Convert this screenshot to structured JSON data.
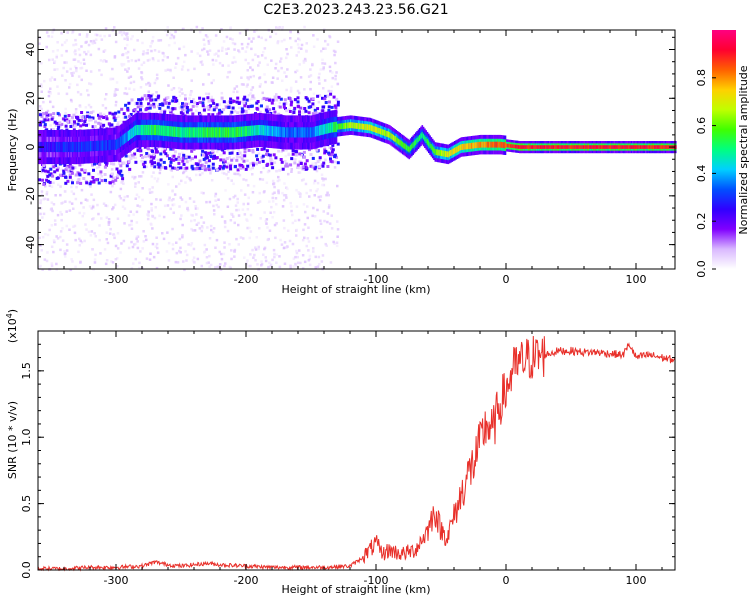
{
  "title": "C2E3.2023.243.23.56.G21",
  "chart_data": [
    {
      "type": "heatmap",
      "xlabel": "Height of straight line (km)",
      "ylabel": "Frequency (Hz)",
      "xlim": [
        -360,
        130
      ],
      "ylim": [
        -50,
        48
      ],
      "x_ticks": [
        -300,
        -200,
        -100,
        0,
        100
      ],
      "y_ticks": [
        -40,
        -20,
        0,
        20,
        40
      ],
      "colorbar": {
        "label": "Normalized spectral amplitude",
        "range": [
          0,
          1
        ],
        "ticks": [
          "0.0",
          "0.2",
          "0.4",
          "0.6",
          "0.8"
        ],
        "tick_values": [
          0,
          0.2,
          0.4,
          0.6,
          0.8
        ],
        "colormap": [
          "#ffffff",
          "#d9b8ff",
          "#8000ff",
          "#3000ff",
          "#0050ff",
          "#00d0ff",
          "#00ff80",
          "#40ff00",
          "#c0ff00",
          "#ffd000",
          "#ff6000",
          "#ff0030",
          "#ff0080"
        ]
      },
      "ridge": [
        {
          "x": -360,
          "f": 0,
          "a": 0.25
        },
        {
          "x": -330,
          "f": 0,
          "a": 0.3
        },
        {
          "x": -300,
          "f": 1,
          "a": 0.3
        },
        {
          "x": -285,
          "f": 7,
          "a": 0.45
        },
        {
          "x": -270,
          "f": 7,
          "a": 0.55
        },
        {
          "x": -250,
          "f": 6,
          "a": 0.5
        },
        {
          "x": -230,
          "f": 6,
          "a": 0.55
        },
        {
          "x": -210,
          "f": 6,
          "a": 0.55
        },
        {
          "x": -190,
          "f": 7,
          "a": 0.45
        },
        {
          "x": -170,
          "f": 6,
          "a": 0.35
        },
        {
          "x": -150,
          "f": 6,
          "a": 0.35
        },
        {
          "x": -135,
          "f": 8,
          "a": 0.5
        },
        {
          "x": -120,
          "f": 9,
          "a": 0.65
        },
        {
          "x": -105,
          "f": 8,
          "a": 0.7
        },
        {
          "x": -90,
          "f": 5,
          "a": 0.65
        },
        {
          "x": -75,
          "f": -1,
          "a": 0.55
        },
        {
          "x": -65,
          "f": 5,
          "a": 0.5
        },
        {
          "x": -55,
          "f": -2,
          "a": 0.6
        },
        {
          "x": -45,
          "f": -3,
          "a": 0.7
        },
        {
          "x": -35,
          "f": 0,
          "a": 0.75
        },
        {
          "x": -20,
          "f": 1,
          "a": 0.8
        },
        {
          "x": -5,
          "f": 1,
          "a": 0.85
        },
        {
          "x": 10,
          "f": 0,
          "a": 0.9
        },
        {
          "x": 50,
          "f": 0,
          "a": 0.9
        },
        {
          "x": 100,
          "f": 0,
          "a": 0.9
        },
        {
          "x": 130,
          "f": 0,
          "a": 0.9
        }
      ]
    },
    {
      "type": "line",
      "xlabel": "Height of straight line (km)",
      "ylabel": "SNR (10 * v/v)",
      "y_scale_label": "(x10",
      "y_scale_exponent": "4",
      "y_scale_close": ")",
      "xlim": [
        -360,
        130
      ],
      "ylim": [
        0,
        1.8
      ],
      "x_ticks": [
        -300,
        -200,
        -100,
        0,
        100
      ],
      "y_ticks": [
        0.0,
        0.5,
        1.0,
        1.5
      ],
      "y_tick_labels": [
        "0.0",
        "0.5",
        "1.0",
        "1.5"
      ],
      "series": [
        {
          "color": "#e8302a",
          "x": [
            -360,
            -340,
            -320,
            -300,
            -280,
            -270,
            -260,
            -250,
            -240,
            -230,
            -220,
            -200,
            -180,
            -160,
            -140,
            -120,
            -112,
            -105,
            -100,
            -95,
            -90,
            -80,
            -70,
            -60,
            -55,
            -50,
            -45,
            -40,
            -35,
            -30,
            -25,
            -20,
            -15,
            -10,
            -5,
            0,
            5,
            10,
            15,
            20,
            30,
            40,
            50,
            60,
            70,
            80,
            90,
            95,
            100,
            110,
            120,
            130
          ],
          "values": [
            0.01,
            0.01,
            0.02,
            0.02,
            0.03,
            0.06,
            0.04,
            0.03,
            0.04,
            0.05,
            0.04,
            0.03,
            0.02,
            0.02,
            0.02,
            0.03,
            0.08,
            0.15,
            0.2,
            0.12,
            0.15,
            0.12,
            0.15,
            0.3,
            0.45,
            0.3,
            0.25,
            0.4,
            0.55,
            0.7,
            0.8,
            0.95,
            1.1,
            1.05,
            1.25,
            1.35,
            1.5,
            1.55,
            1.58,
            1.6,
            1.62,
            1.65,
            1.65,
            1.64,
            1.64,
            1.63,
            1.62,
            1.7,
            1.6,
            1.62,
            1.6,
            1.58
          ]
        }
      ]
    }
  ]
}
